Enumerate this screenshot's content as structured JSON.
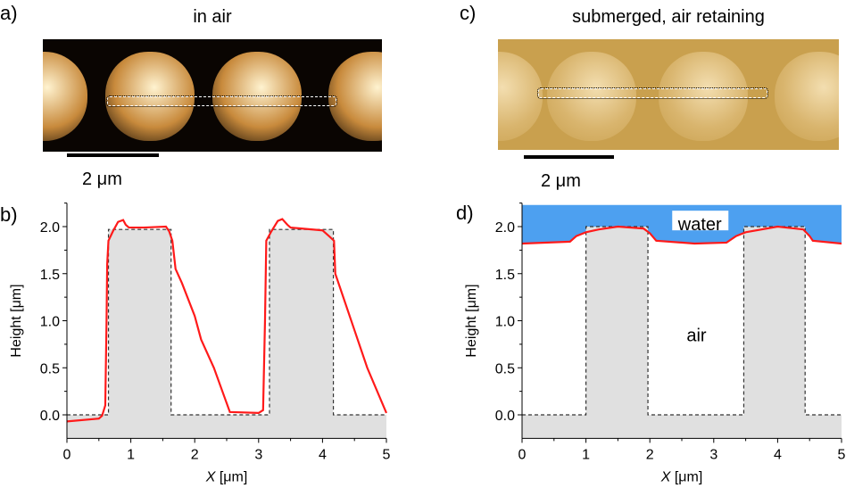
{
  "panels": {
    "a": {
      "label": "a)",
      "title": "in air",
      "scalebar": "2 μm"
    },
    "b": {
      "label": "b)"
    },
    "c": {
      "label": "c)",
      "title": "submerged, air retaining",
      "scalebar": "2 μm"
    },
    "d": {
      "label": "d)",
      "annotations": {
        "water": "water",
        "air": "air"
      }
    }
  },
  "colors": {
    "profile": "#ff1a1a",
    "pillar": "#e0e0e0",
    "water": "#4da0f0"
  },
  "chart_data": [
    {
      "type": "line",
      "panel": "b",
      "xlabel_italic": "X",
      "xlabel": " [μm]",
      "ylabel": "Height [μm]",
      "xlim": [
        0,
        5
      ],
      "ylim": [
        -0.25,
        2.25
      ],
      "xticks": [
        "0",
        "1",
        "2",
        "3",
        "4",
        "5"
      ],
      "yticks": [
        "0.0",
        "0.5",
        "1.0",
        "1.5",
        "2.0"
      ],
      "pillars": [
        [
          0.65,
          1.63
        ],
        [
          3.17,
          4.17
        ]
      ],
      "pillar_height": 1.97,
      "profile": [
        [
          0,
          -0.07
        ],
        [
          0.5,
          -0.04
        ],
        [
          0.55,
          -0.01
        ],
        [
          0.6,
          0.1
        ],
        [
          0.62,
          1.0
        ],
        [
          0.63,
          1.6
        ],
        [
          0.65,
          1.85
        ],
        [
          0.72,
          1.95
        ],
        [
          0.8,
          2.05
        ],
        [
          0.88,
          2.07
        ],
        [
          0.92,
          2.02
        ],
        [
          0.97,
          1.99
        ],
        [
          1.2,
          1.99
        ],
        [
          1.55,
          2.0
        ],
        [
          1.6,
          1.95
        ],
        [
          1.65,
          1.85
        ],
        [
          1.7,
          1.55
        ],
        [
          1.8,
          1.4
        ],
        [
          2.0,
          1.05
        ],
        [
          2.1,
          0.8
        ],
        [
          2.3,
          0.5
        ],
        [
          2.55,
          0.03
        ],
        [
          3.0,
          0.02
        ],
        [
          3.07,
          0.05
        ],
        [
          3.1,
          1.0
        ],
        [
          3.12,
          1.85
        ],
        [
          3.2,
          1.95
        ],
        [
          3.3,
          2.06
        ],
        [
          3.37,
          2.08
        ],
        [
          3.45,
          2.02
        ],
        [
          3.5,
          1.99
        ],
        [
          4.0,
          1.96
        ],
        [
          4.1,
          1.9
        ],
        [
          4.18,
          1.85
        ],
        [
          4.2,
          1.5
        ],
        [
          4.3,
          1.3
        ],
        [
          4.5,
          0.9
        ],
        [
          4.7,
          0.5
        ],
        [
          5,
          0.02
        ]
      ]
    },
    {
      "type": "line",
      "panel": "d",
      "xlabel_italic": "X",
      "xlabel": " [μm]",
      "ylabel": "Height [μm]",
      "xlim": [
        0,
        5
      ],
      "ylim": [
        -0.25,
        2.25
      ],
      "xticks": [
        "0",
        "1",
        "2",
        "3",
        "4",
        "5"
      ],
      "yticks": [
        "0.0",
        "0.5",
        "1.0",
        "1.5",
        "2.0"
      ],
      "pillars": [
        [
          1.0,
          1.97
        ],
        [
          3.47,
          4.43
        ]
      ],
      "pillar_height": 2.0,
      "water_top": 2.23,
      "profile": [
        [
          0,
          1.82
        ],
        [
          0.75,
          1.84
        ],
        [
          0.85,
          1.9
        ],
        [
          1.0,
          1.94
        ],
        [
          1.2,
          1.97
        ],
        [
          1.5,
          2.0
        ],
        [
          1.9,
          1.98
        ],
        [
          2.0,
          1.93
        ],
        [
          2.1,
          1.85
        ],
        [
          2.7,
          1.82
        ],
        [
          3.2,
          1.83
        ],
        [
          3.35,
          1.9
        ],
        [
          3.5,
          1.94
        ],
        [
          4.0,
          2.0
        ],
        [
          4.4,
          1.97
        ],
        [
          4.5,
          1.9
        ],
        [
          4.55,
          1.85
        ],
        [
          5,
          1.82
        ]
      ]
    }
  ]
}
